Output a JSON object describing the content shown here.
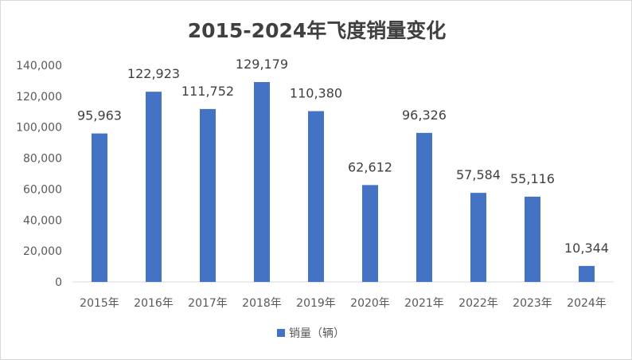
{
  "chart_data": {
    "type": "bar",
    "title": "2015-2024年飞度销量变化",
    "categories": [
      "2015年",
      "2016年",
      "2017年",
      "2018年",
      "2019年",
      "2020年",
      "2021年",
      "2022年",
      "2023年",
      "2024年"
    ],
    "series": [
      {
        "name": "销量（辆）",
        "color": "#4472c4",
        "values": [
          95963,
          122923,
          111752,
          129179,
          110380,
          62612,
          96326,
          57584,
          55116,
          10344
        ],
        "labels": [
          "95,963",
          "122,923",
          "111,752",
          "129,179",
          "110,380",
          "62,612",
          "96,326",
          "57,584",
          "55,116",
          "10,344"
        ]
      }
    ],
    "ylim": [
      0,
      140000
    ],
    "yticks": [
      0,
      20000,
      40000,
      60000,
      80000,
      100000,
      120000,
      140000
    ],
    "ytick_labels": [
      "0",
      "20,000",
      "40,000",
      "60,000",
      "80,000",
      "100,000",
      "120,000",
      "140,000"
    ],
    "gridlines": false,
    "legend_position": "bottom"
  }
}
